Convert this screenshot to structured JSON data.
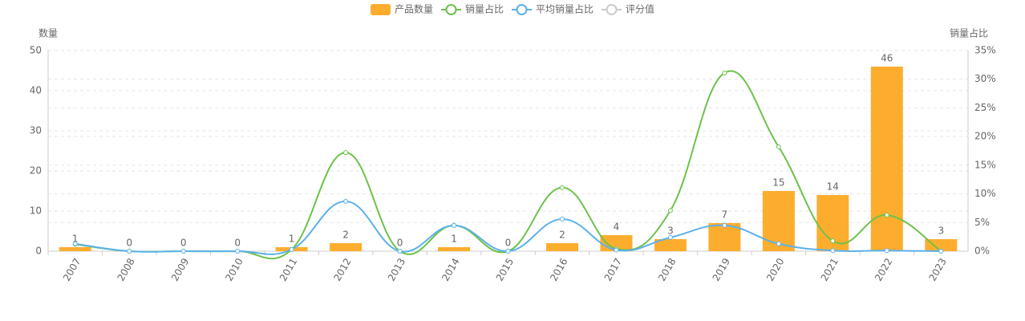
{
  "chart_data": {
    "type": "bar-line",
    "categories": [
      "2007",
      "2008",
      "2009",
      "2010",
      "2011",
      "2012",
      "2013",
      "2014",
      "2015",
      "2016",
      "2017",
      "2018",
      "2019",
      "2020",
      "2021",
      "2022",
      "2023"
    ],
    "ylabel": "数量",
    "y2label": "销量占比",
    "ylim": [
      0,
      50
    ],
    "yticks": [
      0,
      10,
      20,
      30,
      40,
      50
    ],
    "y2lim": [
      0,
      35
    ],
    "y2ticks": [
      {
        "value": 0,
        "label": "0%"
      },
      {
        "value": 5,
        "label": "5%"
      },
      {
        "value": 10,
        "label": "10%"
      },
      {
        "value": 15,
        "label": "15%"
      },
      {
        "value": 20,
        "label": "20%"
      },
      {
        "value": 25,
        "label": "25%"
      },
      {
        "value": 30,
        "label": "30%"
      },
      {
        "value": 35,
        "label": "35%"
      }
    ],
    "grid": true,
    "legend": "top",
    "series": [
      {
        "name": "产品数量",
        "type": "bar",
        "color": "#fdad2e",
        "values": [
          1,
          0,
          0,
          0,
          1,
          2,
          0,
          1,
          0,
          2,
          4,
          3,
          7,
          15,
          14,
          46,
          3
        ]
      },
      {
        "name": "销量占比",
        "type": "line",
        "axis": "y2",
        "color": "#6cc24a",
        "values": [
          1.2,
          0,
          0,
          0,
          0.3,
          17.2,
          0,
          4.5,
          0,
          11.1,
          0.4,
          7.1,
          31.1,
          18.2,
          1.8,
          6.3,
          0
        ]
      },
      {
        "name": "平均销量占比",
        "type": "line",
        "axis": "y2",
        "color": "#5cb1eb",
        "values": [
          1.3,
          0,
          0,
          0,
          0.3,
          8.7,
          0,
          4.5,
          0,
          5.6,
          0.2,
          2.4,
          4.5,
          1.3,
          0.1,
          0.1,
          0
        ]
      },
      {
        "name": "评分值",
        "type": "line",
        "axis": "y2",
        "color": "#cccccc",
        "visible": false,
        "values": [
          null,
          null,
          null,
          null,
          null,
          null,
          null,
          null,
          null,
          null,
          null,
          null,
          null,
          null,
          null,
          null,
          null
        ]
      }
    ]
  }
}
